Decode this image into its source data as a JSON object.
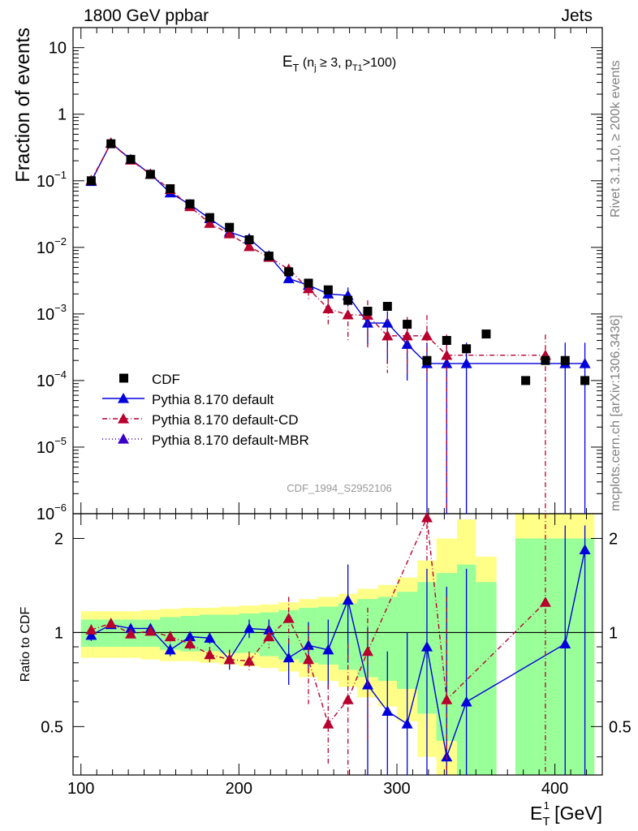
{
  "header": {
    "left_label": "1800 GeV ppbar",
    "right_label": "Jets"
  },
  "side_labels": {
    "rivet": "Rivet 3.1.10, ≥ 200k events",
    "mcplots": "mcplots.cern.ch [arXiv:1306.3436]"
  },
  "chart_data": [
    {
      "type": "scatter",
      "panel": "main",
      "title_main": "E",
      "title_sub": "T",
      "title_rest": "(n",
      "title_j": "j",
      "title_ge": " ≥ 3, p",
      "title_t1": "T1",
      "title_end": ">100)",
      "ylabel": "Fraction of events",
      "yscale": "log",
      "ylim": [
        1e-06,
        20
      ],
      "xlim": [
        95,
        430
      ],
      "y_ticks": [
        {
          "value": 1e-06,
          "base": "10",
          "exp": "−6"
        },
        {
          "value": 1e-05,
          "base": "10",
          "exp": "−5"
        },
        {
          "value": 0.0001,
          "base": "10",
          "exp": "−4"
        },
        {
          "value": 0.001,
          "base": "10",
          "exp": "−3"
        },
        {
          "value": 0.01,
          "base": "10",
          "exp": "−2"
        },
        {
          "value": 0.1,
          "base": "10",
          "exp": "−1"
        },
        {
          "value": 1,
          "base": "1",
          "exp": ""
        },
        {
          "value": 10,
          "base": "10",
          "exp": ""
        }
      ],
      "watermark": "CDF_1994_S2952106",
      "legend_position": "bottom-left",
      "x": [
        106.5,
        119,
        131.5,
        144,
        156.5,
        169,
        181.5,
        194,
        206.5,
        219,
        231.5,
        244,
        256.5,
        269,
        281.5,
        294,
        306.5,
        319,
        331.5,
        344,
        356.5,
        381.5,
        394,
        406.5,
        419
      ],
      "series": [
        {
          "name": "CDF",
          "color": "#000000",
          "marker": "square",
          "x": [
            106.5,
            119,
            131.5,
            144,
            156.5,
            169,
            181.5,
            194,
            206.5,
            219,
            231.5,
            244,
            256.5,
            269,
            281.5,
            294,
            306.5,
            319,
            331.5,
            344,
            356.5,
            381.5,
            394,
            406.5,
            419
          ],
          "values": [
            0.1,
            0.36,
            0.21,
            0.125,
            0.076,
            0.045,
            0.028,
            0.02,
            0.013,
            0.0074,
            0.0043,
            0.0029,
            0.0023,
            0.0016,
            0.0011,
            0.0013,
            0.0007,
            0.0002,
            0.0004,
            0.0003,
            0.0005,
            0.0001,
            0.0002,
            0.0002,
            0.0001
          ]
        },
        {
          "name": "Pythia 8.170 default",
          "color": "#0000dd",
          "style": "solid",
          "x": [
            106.5,
            119,
            131.5,
            144,
            156.5,
            169,
            181.5,
            194,
            206.5,
            219,
            231.5,
            244,
            256.5,
            269,
            281.5,
            294,
            306.5,
            319,
            331.5,
            344,
            406.5,
            419
          ],
          "values": [
            0.098,
            0.37,
            0.21,
            0.126,
            0.066,
            0.044,
            0.027,
            0.017,
            0.0135,
            0.0075,
            0.0034,
            0.0027,
            0.002,
            0.0019,
            0.00073,
            0.00073,
            0.00035,
            0.00018,
            0.00018,
            0.00018,
            0.00018,
            0.00018
          ],
          "err_up": [
            0.102,
            0.38,
            0.215,
            0.129,
            0.068,
            0.0455,
            0.028,
            0.018,
            0.0145,
            0.0082,
            0.0039,
            0.0032,
            0.0025,
            0.0025,
            0.00115,
            0.0011,
            0.0007,
            0.00037,
            0.00037,
            0.00037,
            0.00037,
            0.00037
          ],
          "err_down": [
            0.094,
            0.36,
            0.205,
            0.123,
            0.064,
            0.0425,
            0.026,
            0.016,
            0.0125,
            0.0068,
            0.0029,
            0.0022,
            0.0015,
            0.0013,
            0.00035,
            0.00018,
            0.0001,
            1e-07,
            1e-07,
            1e-07,
            1e-07,
            1e-07
          ]
        },
        {
          "name": "Pythia 8.170 default-CD",
          "color": "#b8002e",
          "style": "dashdot",
          "x": [
            106.5,
            119,
            131.5,
            144,
            156.5,
            169,
            181.5,
            194,
            206.5,
            219,
            231.5,
            244,
            256.5,
            269,
            281.5,
            294,
            306.5,
            319,
            331.5,
            394
          ],
          "values": [
            0.102,
            0.37,
            0.205,
            0.125,
            0.074,
            0.041,
            0.023,
            0.016,
            0.0103,
            0.0071,
            0.0047,
            0.0024,
            0.0012,
            0.00097,
            0.00096,
            0.00047,
            0.00047,
            0.00047,
            0.00024,
            0.00024
          ],
          "err_up": [
            0.106,
            0.38,
            0.21,
            0.128,
            0.077,
            0.043,
            0.025,
            0.018,
            0.0113,
            0.0079,
            0.0056,
            0.0032,
            0.0017,
            0.0016,
            0.0016,
            0.0009,
            0.0009,
            0.00096,
            0.00049,
            0.00049
          ],
          "err_down": [
            0.098,
            0.36,
            0.2,
            0.122,
            0.071,
            0.039,
            0.021,
            0.014,
            0.0093,
            0.0063,
            0.0038,
            0.0016,
            0.0007,
            0.0004,
            0.0003,
            0.00013,
            0.00013,
            0.0001,
            1e-07,
            1e-07
          ]
        },
        {
          "name": "Pythia 8.170 default-MBR",
          "color": "#3a00c8",
          "style": "dotted",
          "x": [],
          "values": []
        }
      ]
    },
    {
      "type": "scatter",
      "panel": "ratio",
      "ylabel": "Ratio to CDF",
      "xlabel_main": "E",
      "xlabel_sup": "1",
      "xlabel_sub": "T",
      "xlabel_unit": "[GeV]",
      "ylim": [
        0.35,
        2.4
      ],
      "xlim": [
        95,
        430
      ],
      "y_ticks": [
        0.5,
        1,
        2
      ],
      "x_ticks": [
        100,
        200,
        300,
        400
      ],
      "bands": {
        "x_edges": [
          100,
          113,
          125,
          138,
          150,
          163,
          175,
          188,
          200,
          213,
          225,
          238,
          250,
          263,
          275,
          288,
          300,
          313,
          325,
          338,
          350,
          363,
          375,
          388,
          400,
          413,
          425
        ],
        "inner_low": [
          0.9,
          0.9,
          0.9,
          0.9,
          0.88,
          0.87,
          0.87,
          0.86,
          0.86,
          0.84,
          0.82,
          0.8,
          0.79,
          0.76,
          0.72,
          0.7,
          0.66,
          0.55,
          0.45,
          0.35,
          0.35,
          null,
          0.35,
          0.35,
          0.35,
          0.35
        ],
        "inner_high": [
          1.1,
          1.1,
          1.1,
          1.1,
          1.12,
          1.13,
          1.14,
          1.14,
          1.15,
          1.16,
          1.18,
          1.2,
          1.21,
          1.24,
          1.28,
          1.3,
          1.35,
          1.45,
          1.55,
          1.65,
          1.45,
          null,
          2.0,
          2.0,
          2.0,
          2.0
        ],
        "outer_low": [
          0.83,
          0.83,
          0.83,
          0.82,
          0.81,
          0.81,
          0.8,
          0.79,
          0.78,
          0.77,
          0.75,
          0.72,
          0.7,
          0.67,
          0.62,
          0.58,
          0.52,
          0.4,
          0.35,
          0.35,
          0.35,
          null,
          0.35,
          0.35,
          0.35,
          0.35
        ],
        "outer_high": [
          1.17,
          1.17,
          1.17,
          1.18,
          1.19,
          1.2,
          1.2,
          1.21,
          1.22,
          1.23,
          1.25,
          1.28,
          1.3,
          1.33,
          1.38,
          1.42,
          1.5,
          1.7,
          2.0,
          2.3,
          1.75,
          null,
          2.4,
          2.4,
          2.4,
          2.4
        ],
        "inner_color": "#99ff99",
        "outer_color": "#ffff88"
      },
      "series": [
        {
          "name": "Pythia 8.170 default",
          "color": "#0000dd",
          "style": "solid",
          "x": [
            106.5,
            119,
            131.5,
            144,
            156.5,
            169,
            181.5,
            194,
            206.5,
            219,
            231.5,
            244,
            256.5,
            269,
            281.5,
            294,
            306.5,
            319,
            331.5,
            344,
            406.5,
            419
          ],
          "values": [
            0.98,
            1.06,
            1.03,
            1.03,
            0.88,
            0.97,
            0.96,
            0.82,
            1.03,
            1.02,
            0.83,
            0.91,
            0.88,
            1.27,
            0.68,
            0.56,
            0.51,
            0.9,
            0.4,
            0.6,
            0.92,
            1.84
          ],
          "err_up": [
            1.02,
            1.09,
            1.06,
            1.06,
            0.92,
            1.0,
            1.0,
            0.88,
            1.1,
            1.1,
            0.96,
            1.08,
            1.1,
            1.65,
            1.04,
            0.87,
            1.0,
            1.6,
            1.4,
            1.6,
            2.2,
            2.2
          ],
          "err_down": [
            0.94,
            1.03,
            1.0,
            1.0,
            0.84,
            0.94,
            0.92,
            0.76,
            0.96,
            0.94,
            0.68,
            0.74,
            0.66,
            0.8,
            0.32,
            0.34,
            0.34,
            0.34,
            0.34,
            0.34,
            0.34,
            0.34
          ]
        },
        {
          "name": "Pythia 8.170 default-CD",
          "color": "#b8002e",
          "style": "dashdot",
          "x": [
            106.5,
            119,
            131.5,
            144,
            156.5,
            169,
            181.5,
            194,
            206.5,
            219,
            231.5,
            244,
            256.5,
            269,
            281.5,
            319,
            331.5,
            394
          ],
          "values": [
            1.02,
            1.07,
            0.99,
            1.01,
            0.97,
            0.92,
            0.85,
            0.82,
            0.81,
            0.97,
            1.11,
            0.82,
            0.51,
            0.61,
            0.87,
            2.33,
            0.61,
            1.25
          ],
          "err_up": [
            1.06,
            1.1,
            1.02,
            1.04,
            1.01,
            0.96,
            0.9,
            0.88,
            0.87,
            1.05,
            1.3,
            1.05,
            0.68,
            0.92,
            1.2,
            2.4,
            1.3,
            2.4
          ],
          "err_down": [
            0.98,
            1.04,
            0.96,
            0.98,
            0.93,
            0.88,
            0.8,
            0.76,
            0.75,
            0.89,
            0.92,
            0.59,
            0.38,
            0.34,
            0.45,
            1.7,
            0.34,
            0.34
          ]
        }
      ]
    }
  ]
}
